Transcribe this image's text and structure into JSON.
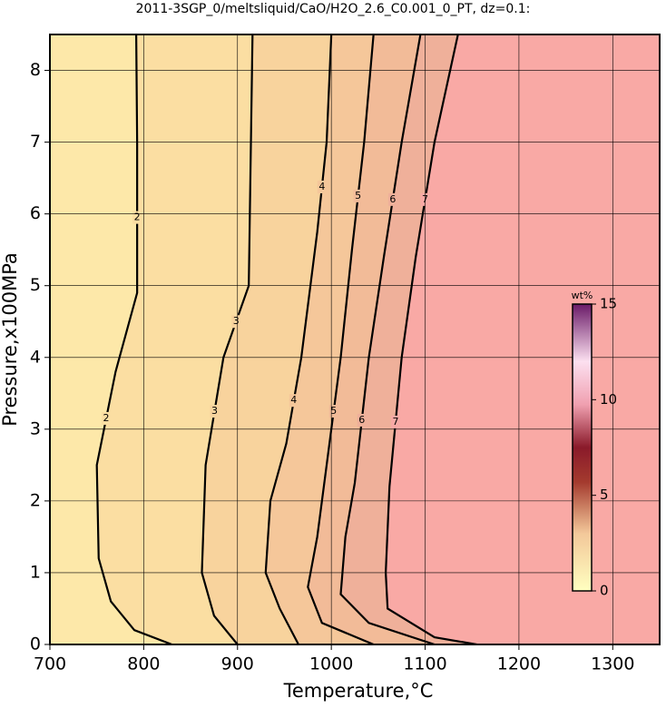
{
  "chart_data": {
    "type": "contour",
    "title": "2011-3SGP_0/meltsliquid/CaO/H2O_2.6_C0.001_0_PT, dz=0.1:",
    "x_label": "Temperature,°C",
    "y_label": "Pressure,x100MPa",
    "xlim": [
      700,
      1350
    ],
    "ylim": [
      0,
      8.5
    ],
    "xticks": [
      700,
      800,
      900,
      1000,
      1100,
      1200,
      1300
    ],
    "yticks": [
      0,
      1,
      2,
      3,
      4,
      5,
      6,
      7,
      8
    ],
    "grid": true,
    "background": "#fde8a9",
    "contours": [
      {
        "level": 2,
        "color": "#fbdea2",
        "x": [
          830,
          790,
          765,
          752,
          750,
          770,
          793,
          793,
          792
        ],
        "y": [
          0,
          0.2,
          0.6,
          1.2,
          2.5,
          3.8,
          4.9,
          7,
          8.5
        ]
      },
      {
        "level": 3,
        "color": "#f8d39d",
        "x": [
          900,
          875,
          862,
          866,
          885,
          912,
          916
        ],
        "y": [
          0,
          0.4,
          1,
          2.5,
          4,
          5,
          8.5
        ]
      },
      {
        "level": 4,
        "color": "#f5c79a",
        "x": [
          965,
          945,
          930,
          935,
          952,
          968,
          985,
          995,
          1000
        ],
        "y": [
          0,
          0.5,
          1,
          2,
          2.8,
          4,
          5.75,
          7,
          8.5
        ]
      },
      {
        "level": 5,
        "color": "#f2bb98",
        "x": [
          1045,
          990,
          975,
          985,
          995,
          1010,
          1022,
          1035,
          1045
        ],
        "y": [
          0,
          0.3,
          0.8,
          1.5,
          2.5,
          4,
          5.5,
          7,
          8.5
        ]
      },
      {
        "level": 6,
        "color": "#efb09a",
        "x": [
          1110,
          1040,
          1010,
          1015,
          1025,
          1040,
          1056,
          1075,
          1095
        ],
        "y": [
          0,
          0.3,
          0.7,
          1.5,
          2.25,
          4,
          5.4,
          7,
          8.5
        ]
      },
      {
        "level": 7,
        "color": "#f9a9a5",
        "x": [
          1155,
          1110,
          1060,
          1058,
          1062,
          1075,
          1090,
          1110,
          1135
        ],
        "y": [
          0,
          0.1,
          0.5,
          1,
          2.2,
          4,
          5.4,
          7,
          8.5
        ]
      }
    ],
    "colorbar": {
      "label": "wt%",
      "lim": [
        0,
        15
      ],
      "ticks": [
        0,
        5,
        10,
        15
      ]
    }
  }
}
